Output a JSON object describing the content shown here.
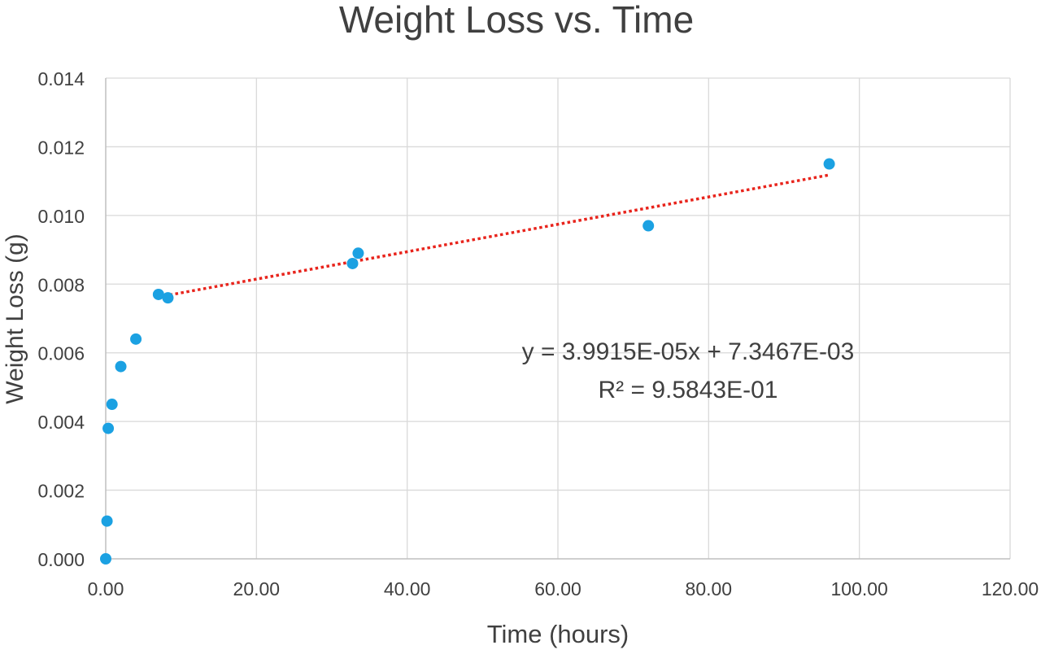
{
  "chart_data": {
    "type": "scatter",
    "title": "Weight Loss vs. Time",
    "xlabel": "Time (hours)",
    "ylabel": "Weight Loss (g)",
    "xlim": [
      0,
      120
    ],
    "ylim": [
      0,
      0.014
    ],
    "x_ticks": [
      "0.00",
      "20.00",
      "40.00",
      "60.00",
      "80.00",
      "100.00",
      "120.00"
    ],
    "y_ticks": [
      "0.000",
      "0.002",
      "0.004",
      "0.006",
      "0.008",
      "0.010",
      "0.012",
      "0.014"
    ],
    "grid": true,
    "legend": "none",
    "series": [
      {
        "color": "#1ba1e2",
        "points": [
          {
            "x": 0.0,
            "y": 0.0
          },
          {
            "x": 0.17,
            "y": 0.0011
          },
          {
            "x": 0.33,
            "y": 0.0038
          },
          {
            "x": 0.83,
            "y": 0.0045
          },
          {
            "x": 2.0,
            "y": 0.0056
          },
          {
            "x": 4.0,
            "y": 0.0064
          },
          {
            "x": 7.0,
            "y": 0.0077
          },
          {
            "x": 8.25,
            "y": 0.0076
          },
          {
            "x": 32.75,
            "y": 0.0086
          },
          {
            "x": 33.5,
            "y": 0.0089
          },
          {
            "x": 72.0,
            "y": 0.0097
          },
          {
            "x": 96.0,
            "y": 0.0115
          }
        ]
      }
    ],
    "trendline": {
      "type": "linear",
      "color": "#e8241c",
      "style": "dotted",
      "slope": 3.9915e-05,
      "intercept": 0.0073467,
      "x_range": [
        7.0,
        96.0
      ],
      "equation_label": "y = 3.9915E-05x + 7.3467E-03",
      "r2_label": "R² = 9.5843E-01"
    }
  }
}
